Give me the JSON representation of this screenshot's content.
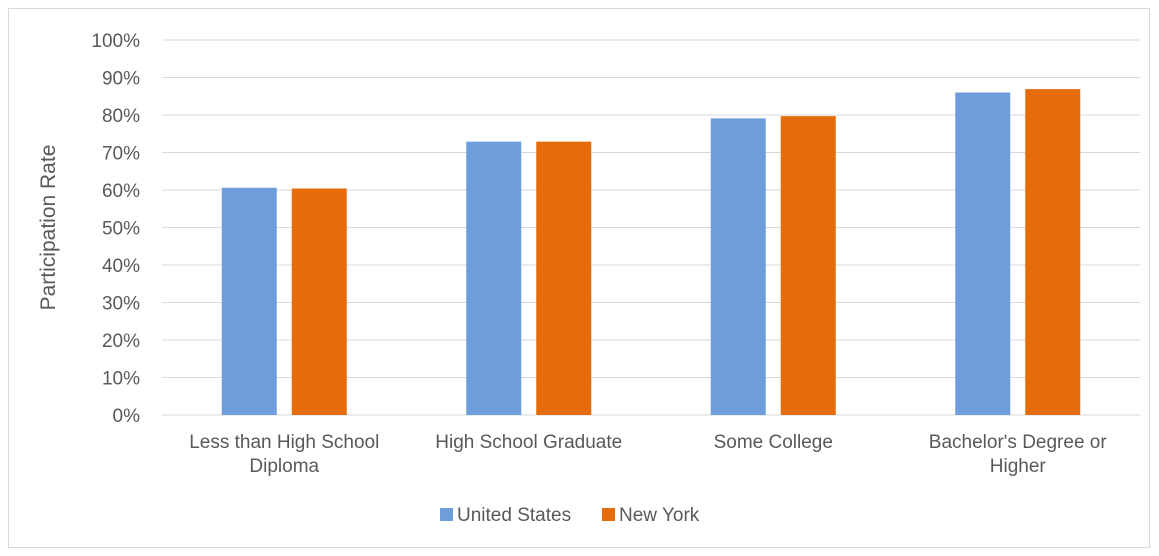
{
  "chart_data": {
    "type": "bar",
    "title": "",
    "xlabel": "",
    "ylabel": "Participation Rate",
    "ylim": [
      0,
      100
    ],
    "yticks": [
      "0%",
      "10%",
      "20%",
      "30%",
      "40%",
      "50%",
      "60%",
      "70%",
      "80%",
      "90%",
      "100%"
    ],
    "categories": [
      [
        "Less than High School",
        "Diploma"
      ],
      [
        "High School Graduate"
      ],
      [
        "Some College"
      ],
      [
        "Bachelor's Degree or",
        "Higher"
      ]
    ],
    "series": [
      {
        "name": "United States",
        "color": "#6d9edb",
        "values": [
          60.6,
          72.9,
          79.1,
          86.0
        ]
      },
      {
        "name": "New York",
        "color": "#e46c0a",
        "values": [
          60.4,
          72.9,
          79.7,
          86.9
        ]
      }
    ],
    "grid": true,
    "legend": "bottom"
  }
}
